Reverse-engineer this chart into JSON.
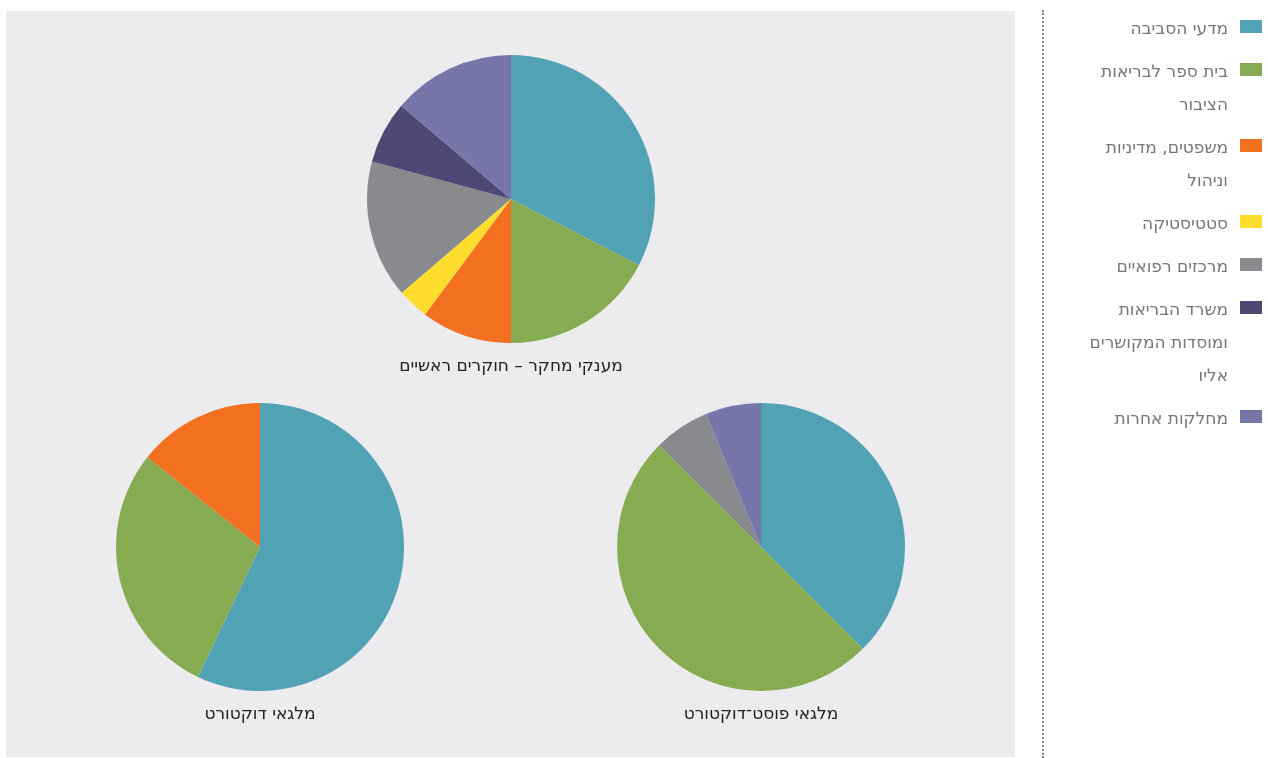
{
  "chart_data": [
    {
      "type": "pie",
      "title": "מענקי מחקר – חוקרים ראשיים",
      "legend": "right",
      "categories": [
        "מדעי הסביבה",
        "בית ספר לבריאות הציבור",
        "משפטים, מדיניות וניהול",
        "סטטיסטיקה",
        "מרכזים רפואיים",
        "משרד הבריאות ומוסדות המקושרים אליו",
        "מחלקות אחרות"
      ],
      "values": [
        32.6,
        17.4,
        10.2,
        3.5,
        15.5,
        7.0,
        13.8
      ],
      "colors": [
        "#52a2b6",
        "#86ab50",
        "#f37021",
        "#fedd2c",
        "#898a8e",
        "#4d4874",
        "#7776aa"
      ]
    },
    {
      "type": "pie",
      "title": "מלגאי דוקטורט",
      "categories": [
        null,
        null,
        null
      ],
      "values": [
        57.1,
        28.6,
        14.3
      ],
      "colors": [
        "#52a2b6",
        "#86ab50",
        "#f37021"
      ]
    },
    {
      "type": "pie",
      "title": "מלגאי פוסט־דוקטורט",
      "categories": [
        null,
        null,
        null,
        null
      ],
      "values": [
        37.5,
        50,
        6.25,
        6.25
      ],
      "colors": [
        "#52a2b6",
        "#86ab50",
        "#898a8e",
        "#7776aa"
      ]
    }
  ]
}
